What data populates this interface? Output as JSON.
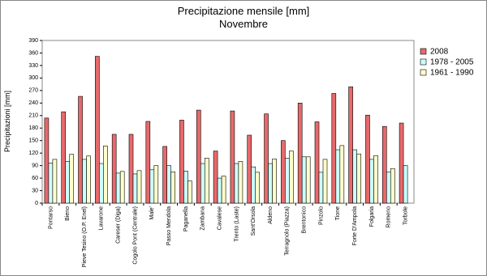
{
  "chart_data": {
    "type": "bar",
    "title": "Precipitazione mensile [mm]",
    "subtitle": "Novembre",
    "y_label": "Precipitazioni [mm]",
    "categories": [
      "Pontarso",
      "Bieno",
      "Pieve Tesino (O.P. Enel)",
      "Lavarone",
      "Careser (Diga)",
      "Cogolo Pont (Centrale)",
      "Male'",
      "Passo Mendola",
      "Paganella",
      "Zambana",
      "Cavalese",
      "Trento (Laste)",
      "Sant'Orsola",
      "Aldeno",
      "Terragnolo (Piazza)",
      "Brentonico",
      "Pinzolo",
      "Tione",
      "Forte D'Ampola",
      "Folgaria",
      "Romeno",
      "Torbole"
    ],
    "series": [
      {
        "name": "2008",
        "color": "#e8696b",
        "values": [
          204,
          219,
          256,
          352,
          165,
          165,
          196,
          136,
          199,
          223,
          125,
          221,
          163,
          214,
          150,
          240,
          195,
          263,
          279,
          211,
          184,
          192
        ]
      },
      {
        "name": "1978 - 2005",
        "color": "#ccffff",
        "values": [
          96,
          100,
          105,
          95,
          72,
          70,
          80,
          90,
          77,
          95,
          60,
          95,
          87,
          95,
          108,
          111,
          74,
          128,
          128,
          105,
          75,
          90
        ]
      },
      {
        "name": "1961 - 1990",
        "color": "#ffffcc",
        "values": [
          105,
          117,
          113,
          137,
          76,
          78,
          90,
          75,
          53,
          108,
          65,
          100,
          74,
          106,
          125,
          111,
          105,
          138,
          118,
          114,
          83,
          null
        ]
      }
    ],
    "ylim": [
      0,
      390
    ],
    "yticks": [
      0,
      30,
      60,
      90,
      120,
      150,
      180,
      210,
      240,
      270,
      300,
      330,
      360,
      390
    ],
    "legend": "right"
  }
}
